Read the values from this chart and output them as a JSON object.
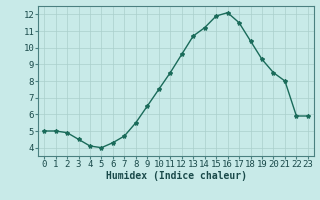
{
  "x": [
    0,
    1,
    2,
    3,
    4,
    5,
    6,
    7,
    8,
    9,
    10,
    11,
    12,
    13,
    14,
    15,
    16,
    17,
    18,
    19,
    20,
    21,
    22,
    23
  ],
  "y": [
    5.0,
    5.0,
    4.9,
    4.5,
    4.1,
    4.0,
    4.3,
    4.7,
    5.5,
    6.5,
    7.5,
    8.5,
    9.6,
    10.7,
    11.2,
    11.9,
    12.1,
    11.5,
    10.4,
    9.3,
    8.5,
    8.0,
    5.9,
    5.9
  ],
  "line_color": "#1a6b5a",
  "marker": "*",
  "marker_size": 3,
  "bg_color": "#c8eae8",
  "grid_color": "#aacfcc",
  "xlabel": "Humidex (Indice chaleur)",
  "xlabel_fontsize": 7,
  "tick_fontsize": 6.5,
  "xlim": [
    -0.5,
    23.5
  ],
  "ylim": [
    3.5,
    12.5
  ],
  "yticks": [
    4,
    5,
    6,
    7,
    8,
    9,
    10,
    11,
    12
  ],
  "xticks": [
    0,
    1,
    2,
    3,
    4,
    5,
    6,
    7,
    8,
    9,
    10,
    11,
    12,
    13,
    14,
    15,
    16,
    17,
    18,
    19,
    20,
    21,
    22,
    23
  ],
  "line_width": 1.0,
  "spine_color": "#4a8080",
  "text_color": "#1a4a4a"
}
